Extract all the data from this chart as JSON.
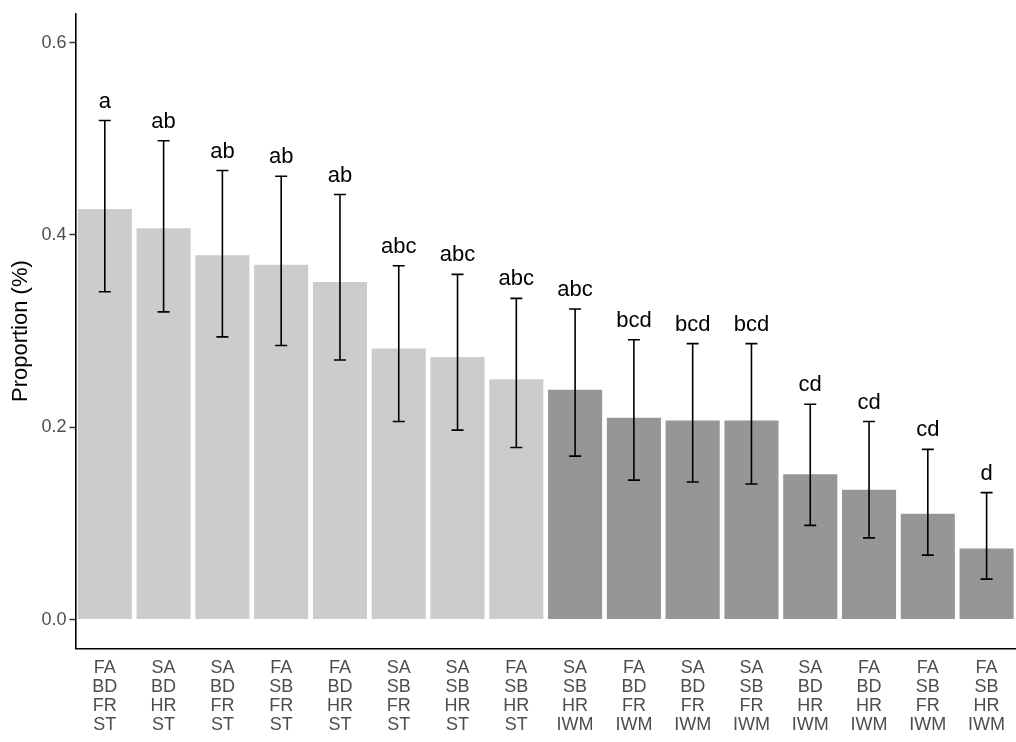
{
  "chart_data": {
    "type": "bar",
    "ylabel": "Proportion (%)",
    "categories": [
      "FA\nBD\nFR\nST",
      "SA\nBD\nHR\nST",
      "SA\nBD\nFR\nST",
      "FA\nSB\nFR\nST",
      "FA\nBD\nHR\nST",
      "SA\nSB\nFR\nST",
      "SA\nSB\nHR\nST",
      "FA\nSB\nHR\nST",
      "SA\nSB\nHR\nIWM",
      "FA\nBD\nFR\nIWM",
      "SA\nBD\nFR\nIWM",
      "SA\nSB\nFR\nIWM",
      "SA\nBD\nHR\nIWM",
      "FA\nBD\nHR\nIWM",
      "FA\nSB\nFR\nIWM",
      "FA\nSB\nHR\nIWM"
    ],
    "values": [
      0.427,
      0.407,
      0.379,
      0.369,
      0.351,
      0.282,
      0.273,
      0.25,
      0.239,
      0.21,
      0.207,
      0.207,
      0.151,
      0.135,
      0.11,
      0.074
    ],
    "errors": [
      [
        0.341,
        0.519
      ],
      [
        0.32,
        0.498
      ],
      [
        0.294,
        0.467
      ],
      [
        0.285,
        0.461
      ],
      [
        0.27,
        0.442
      ],
      [
        0.206,
        0.368
      ],
      [
        0.197,
        0.359
      ],
      [
        0.179,
        0.334
      ],
      [
        0.17,
        0.323
      ],
      [
        0.145,
        0.291
      ],
      [
        0.143,
        0.287
      ],
      [
        0.141,
        0.287
      ],
      [
        0.098,
        0.224
      ],
      [
        0.085,
        0.206
      ],
      [
        0.067,
        0.177
      ],
      [
        0.042,
        0.132
      ]
    ],
    "colors": [
      "#cccccc",
      "#cccccc",
      "#cccccc",
      "#cccccc",
      "#cccccc",
      "#cccccc",
      "#cccccc",
      "#cccccc",
      "#969696",
      "#969696",
      "#969696",
      "#969696",
      "#969696",
      "#969696",
      "#969696",
      "#969696"
    ],
    "ylim": [
      -0.03,
      0.63
    ],
    "yticks": [
      {
        "value": 0,
        "label": "0.0"
      },
      0.2,
      0.4,
      0.6
    ],
    "grid": false,
    "legend": false,
    "annotations": [
      {
        "text": "a",
        "x": "FA\nBD\nFR\nST",
        "y": 0.519
      },
      {
        "text": "ab",
        "x": "SA\nBD\nHR\nST",
        "y": 0.498
      },
      {
        "text": "ab",
        "x": "SA\nBD\nFR\nST",
        "y": 0.467
      },
      {
        "text": "ab",
        "x": "FA\nSB\nFR\nST",
        "y": 0.461
      },
      {
        "text": "ab",
        "x": "FA\nBD\nHR\nST",
        "y": 0.442
      },
      {
        "text": "abc",
        "x": "SA\nSB\nFR\nST",
        "y": 0.368
      },
      {
        "text": "abc",
        "x": "SA\nSB\nHR\nST",
        "y": 0.359
      },
      {
        "text": "abc",
        "x": "FA\nSB\nHR\nST",
        "y": 0.334
      },
      {
        "text": "abc",
        "x": "SA\nSB\nHR\nIWM",
        "y": 0.323
      },
      {
        "text": "bcd",
        "x": "FA\nBD\nFR\nIWM",
        "y": 0.291
      },
      {
        "text": "bcd",
        "x": "SA\nBD\nFR\nIWM",
        "y": 0.287
      },
      {
        "text": "bcd",
        "x": "SA\nSB\nFR\nIWM",
        "y": 0.287
      },
      {
        "text": "cd",
        "x": "SA\nBD\nHR\nIWM",
        "y": 0.224
      },
      {
        "text": "cd",
        "x": "FA\nBD\nHR\nIWM",
        "y": 0.206
      },
      {
        "text": "cd",
        "x": "FA\nSB\nFR\nIWM",
        "y": 0.177
      },
      {
        "text": "d",
        "x": "FA\nSB\nHR\nIWM",
        "y": 0.132
      }
    ]
  }
}
